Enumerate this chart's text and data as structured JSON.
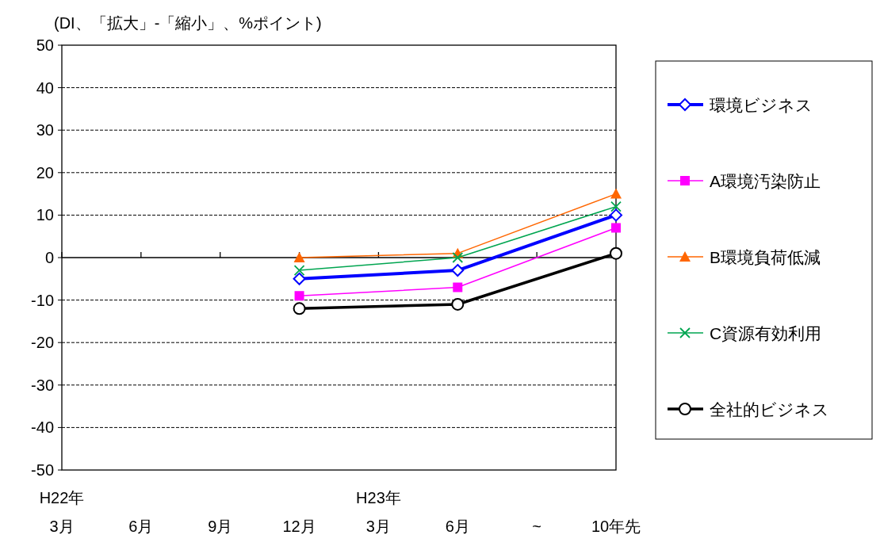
{
  "chart_data": {
    "type": "line",
    "ylabel": "(DI、「拡大」-「縮小」、%ポイント)",
    "categories": [
      "H22年\n3月",
      "6月",
      "9月",
      "12月",
      "H23年\n3月",
      "6月",
      "~",
      "10年先"
    ],
    "ylim": [
      -50,
      50
    ],
    "yticks": [
      -50,
      -40,
      -30,
      -20,
      -10,
      0,
      10,
      20,
      30,
      40,
      50
    ],
    "grid": "y",
    "legend": "right",
    "series": [
      {
        "name": "環境ビジネス",
        "color": "#0000ff",
        "marker": "diamond",
        "values": [
          null,
          null,
          null,
          -5,
          null,
          -3,
          null,
          10
        ]
      },
      {
        "name": "A環境汚染防止",
        "color": "#ff00ff",
        "marker": "square",
        "values": [
          null,
          null,
          null,
          -9,
          null,
          -7,
          null,
          7
        ]
      },
      {
        "name": "B環境負荷低減",
        "color": "#ff6600",
        "marker": "triangle",
        "values": [
          null,
          null,
          null,
          0,
          null,
          1,
          null,
          15
        ]
      },
      {
        "name": "C資源有効利用",
        "color": "#00a550",
        "marker": "cross",
        "values": [
          null,
          null,
          null,
          -3,
          null,
          0,
          null,
          12
        ]
      },
      {
        "name": "全社的ビジネス",
        "color": "#000000",
        "marker": "circle",
        "values": [
          null,
          null,
          null,
          -12,
          null,
          -11,
          null,
          1
        ]
      }
    ]
  }
}
